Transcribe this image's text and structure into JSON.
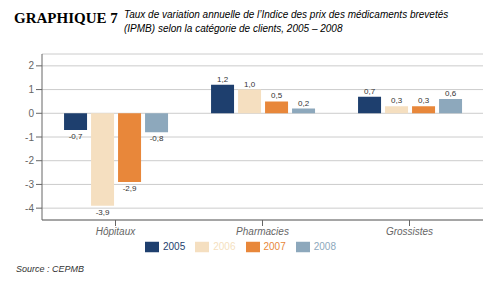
{
  "chart_data": {
    "type": "bar",
    "title": "GRAPHIQUE 7",
    "subtitle": [
      "Taux de variation annuelle de l’Indice des prix des médicaments brevetés",
      "(IPMB) selon la catégorie de clients, 2005 – 2008"
    ],
    "categories": [
      "Hôpitaux",
      "Pharmacies",
      "Grossistes"
    ],
    "series": [
      {
        "name": "2005",
        "color": "#1e3f6e",
        "values": [
          -0.7,
          1.2,
          0.7
        ],
        "value_labels": [
          "-0,7",
          "1,2",
          "0,7"
        ]
      },
      {
        "name": "2006",
        "color": "#f5dfc0",
        "values": [
          -3.9,
          1.0,
          0.3
        ],
        "value_labels": [
          "-3,9",
          "1,0",
          "0,3"
        ]
      },
      {
        "name": "2007",
        "color": "#e8873a",
        "values": [
          -2.9,
          0.5,
          0.3
        ],
        "value_labels": [
          "-2,9",
          "0,5",
          "0,3"
        ]
      },
      {
        "name": "2008",
        "color": "#8da8bc",
        "values": [
          -0.8,
          0.2,
          0.6
        ],
        "value_labels": [
          "-0,8",
          "0,2",
          "0,6"
        ]
      }
    ],
    "ylim": [
      -4.5,
      2.5
    ],
    "yticks": [
      -4,
      -3,
      -2,
      -1,
      0,
      1,
      2
    ],
    "grid": true,
    "legend": "bottom",
    "data_labels": true,
    "source": "Source : CEPMB"
  }
}
